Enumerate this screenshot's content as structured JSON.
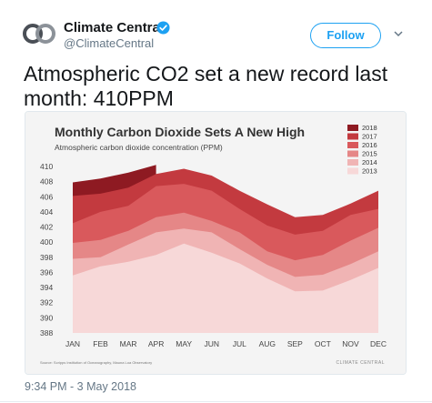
{
  "author": {
    "name": "Climate Central",
    "handle": "@ClimateCentral",
    "verified": true,
    "avatar_icon": "climate-central-logo"
  },
  "follow_label": "Follow",
  "tweet_text": "Atmospheric CO2 set a new record last month: 410PPM",
  "timestamp": "9:34 PM - 3 May 2018",
  "colors": {
    "accent": "#1da1f2",
    "verified": "#1da1f2"
  },
  "chart_data": {
    "type": "area",
    "title": "Monthly Carbon Dioxide Sets A New High",
    "subtitle": "Atmospheric carbon dioxide concentration (PPM)",
    "categories": [
      "JAN",
      "FEB",
      "MAR",
      "APR",
      "MAY",
      "JUN",
      "JUL",
      "AUG",
      "SEP",
      "OCT",
      "NOV",
      "DEC"
    ],
    "ylim": [
      388,
      410
    ],
    "yticks": [
      388,
      390,
      392,
      394,
      396,
      398,
      400,
      402,
      404,
      406,
      408,
      410
    ],
    "series": [
      {
        "name": "2013",
        "color": "#f7d8d8",
        "values": [
          395.6,
          396.8,
          397.4,
          398.3,
          399.8,
          398.6,
          397.2,
          395.2,
          393.5,
          393.6,
          395.0,
          396.6
        ]
      },
      {
        "name": "2014",
        "color": "#f0b4b4",
        "values": [
          397.8,
          398.0,
          399.7,
          401.3,
          401.8,
          401.3,
          399.1,
          397.0,
          395.4,
          395.7,
          397.1,
          398.8
        ]
      },
      {
        "name": "2015",
        "color": "#e58787",
        "values": [
          399.9,
          400.3,
          401.5,
          403.3,
          403.9,
          402.8,
          401.3,
          398.8,
          397.6,
          398.3,
          400.2,
          401.9
        ]
      },
      {
        "name": "2016",
        "color": "#d9595c",
        "values": [
          402.5,
          404.0,
          404.8,
          407.4,
          407.7,
          406.8,
          404.4,
          402.2,
          401.0,
          401.5,
          403.6,
          404.4
        ]
      },
      {
        "name": "2017",
        "color": "#c33a3f",
        "values": [
          406.1,
          406.4,
          407.2,
          409.0,
          409.7,
          408.8,
          406.8,
          405.0,
          403.3,
          403.6,
          405.1,
          406.8
        ]
      },
      {
        "name": "2018",
        "color": "#8e1a22",
        "values": [
          407.9,
          408.4,
          409.2,
          410.2,
          null,
          null,
          null,
          null,
          null,
          null,
          null,
          null
        ]
      }
    ],
    "source": "Source: Scripps Institution of Oceanography, Mauna Loa Observatory",
    "brand": "CLIMATE CENTRAL"
  }
}
